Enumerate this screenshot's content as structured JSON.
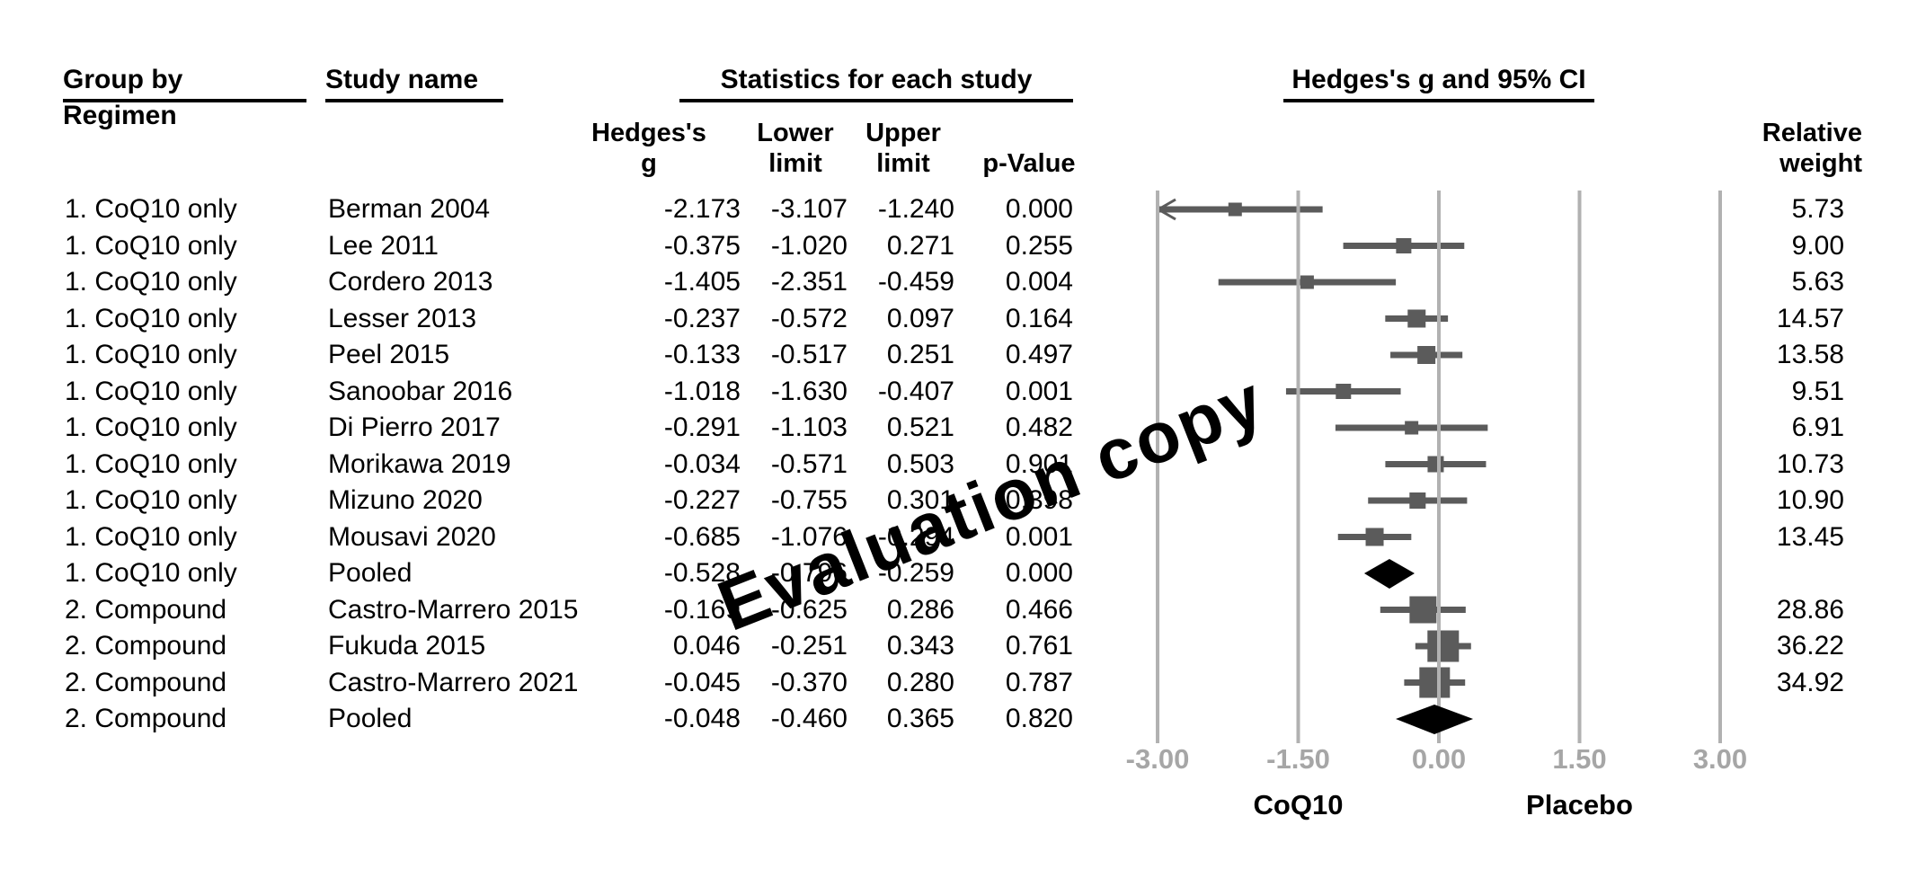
{
  "header": {
    "group_by_line1": "Group by",
    "group_by_line2": "Regimen",
    "study_name": "Study name",
    "stats_title": "Statistics for each study",
    "ci_title": "Hedges's g and 95% CI",
    "relative_weight_line1": "Relative",
    "relative_weight_line2": "weight"
  },
  "subheaders": {
    "hedges_line1": "Hedges's",
    "hedges_line2": "g",
    "lower_line1": "Lower",
    "lower_line2": "limit",
    "upper_line1": "Upper",
    "upper_line2": "limit",
    "p_value": "p-Value"
  },
  "watermark": {
    "text": "Evaluation copy"
  },
  "colors": {
    "marker_gray": "#5b5b5b",
    "gridline_gray": "#b1b1b1",
    "axis_label_gray": "#a6a6a6",
    "diamond_black": "#000000",
    "text_black": "#000000"
  },
  "chart_data": {
    "type": "forest",
    "title": "Hedges's g and 95% CI",
    "xlabel_left_group": "CoQ10",
    "xlabel_right_group": "Placebo",
    "xlim": [
      -3,
      3
    ],
    "ticks": [
      {
        "value": -3.0,
        "label": "-3.00"
      },
      {
        "value": -1.5,
        "label": "-1.50"
      },
      {
        "value": 0.0,
        "label": "0.00"
      },
      {
        "value": 1.5,
        "label": "1.50"
      },
      {
        "value": 3.0,
        "label": "3.00"
      }
    ],
    "rows": [
      {
        "group": "1. CoQ10 only",
        "study": "Berman 2004",
        "g": "-2.173",
        "lower": "-3.107",
        "upper": "-1.240",
        "p": "0.000",
        "weight": "5.73",
        "pooled": false
      },
      {
        "group": "1. CoQ10 only",
        "study": "Lee 2011",
        "g": "-0.375",
        "lower": "-1.020",
        "upper": "0.271",
        "p": "0.255",
        "weight": "9.00",
        "pooled": false
      },
      {
        "group": "1. CoQ10 only",
        "study": "Cordero 2013",
        "g": "-1.405",
        "lower": "-2.351",
        "upper": "-0.459",
        "p": "0.004",
        "weight": "5.63",
        "pooled": false
      },
      {
        "group": "1. CoQ10 only",
        "study": "Lesser 2013",
        "g": "-0.237",
        "lower": "-0.572",
        "upper": "0.097",
        "p": "0.164",
        "weight": "14.57",
        "pooled": false
      },
      {
        "group": "1. CoQ10 only",
        "study": "Peel 2015",
        "g": "-0.133",
        "lower": "-0.517",
        "upper": "0.251",
        "p": "0.497",
        "weight": "13.58",
        "pooled": false
      },
      {
        "group": "1. CoQ10 only",
        "study": "Sanoobar 2016",
        "g": "-1.018",
        "lower": "-1.630",
        "upper": "-0.407",
        "p": "0.001",
        "weight": "9.51",
        "pooled": false
      },
      {
        "group": "1. CoQ10 only",
        "study": "Di Pierro 2017",
        "g": "-0.291",
        "lower": "-1.103",
        "upper": "0.521",
        "p": "0.482",
        "weight": "6.91",
        "pooled": false
      },
      {
        "group": "1. CoQ10 only",
        "study": "Morikawa 2019",
        "g": "-0.034",
        "lower": "-0.571",
        "upper": "0.503",
        "p": "0.901",
        "weight": "10.73",
        "pooled": false
      },
      {
        "group": "1. CoQ10 only",
        "study": "Mizuno 2020",
        "g": "-0.227",
        "lower": "-0.755",
        "upper": "0.301",
        "p": "0.398",
        "weight": "10.90",
        "pooled": false
      },
      {
        "group": "1. CoQ10 only",
        "study": "Mousavi 2020",
        "g": "-0.685",
        "lower": "-1.076",
        "upper": "-0.294",
        "p": "0.001",
        "weight": "13.45",
        "pooled": false
      },
      {
        "group": "1. CoQ10 only",
        "study": "Pooled",
        "g": "-0.528",
        "lower": "-0.796",
        "upper": "-0.259",
        "p": "0.000",
        "weight": "",
        "pooled": true
      },
      {
        "group": "2. Compound",
        "study": "Castro-Marrero 2015",
        "g": "-0.169",
        "lower": "-0.625",
        "upper": "0.286",
        "p": "0.466",
        "weight": "28.86",
        "pooled": false
      },
      {
        "group": "2. Compound",
        "study": "Fukuda 2015",
        "g": "0.046",
        "lower": "-0.251",
        "upper": "0.343",
        "p": "0.761",
        "weight": "36.22",
        "pooled": false
      },
      {
        "group": "2. Compound",
        "study": "Castro-Marrero 2021",
        "g": "-0.045",
        "lower": "-0.370",
        "upper": "0.280",
        "p": "0.787",
        "weight": "34.92",
        "pooled": false
      },
      {
        "group": "2. Compound",
        "study": "Pooled",
        "g": "-0.048",
        "lower": "-0.460",
        "upper": "0.365",
        "p": "0.820",
        "weight": "",
        "pooled": true
      }
    ]
  }
}
